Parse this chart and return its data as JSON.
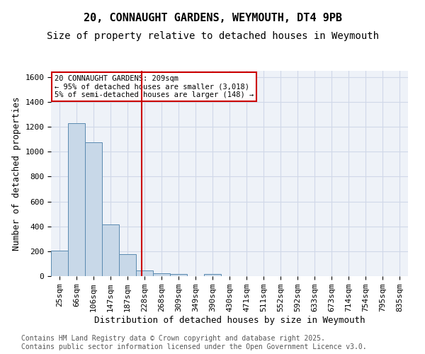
{
  "title1": "20, CONNAUGHT GARDENS, WEYMOUTH, DT4 9PB",
  "title2": "Size of property relative to detached houses in Weymouth",
  "xlabel": "Distribution of detached houses by size in Weymouth",
  "ylabel": "Number of detached properties",
  "bin_labels": [
    "25sqm",
    "66sqm",
    "106sqm",
    "147sqm",
    "187sqm",
    "228sqm",
    "268sqm",
    "309sqm",
    "349sqm",
    "390sqm",
    "430sqm",
    "471sqm",
    "511sqm",
    "552sqm",
    "592sqm",
    "633sqm",
    "673sqm",
    "714sqm",
    "754sqm",
    "795sqm",
    "835sqm"
  ],
  "bar_heights": [
    205,
    1230,
    1075,
    415,
    175,
    45,
    25,
    15,
    0,
    15,
    0,
    0,
    0,
    0,
    0,
    0,
    0,
    0,
    0,
    0,
    0
  ],
  "bar_color": "#c8d8e8",
  "bar_edge_color": "#5a8ab0",
  "ylim": [
    0,
    1650
  ],
  "yticks": [
    0,
    200,
    400,
    600,
    800,
    1000,
    1200,
    1400,
    1600
  ],
  "vline_x": 4.82,
  "vline_color": "#cc0000",
  "annotation_text": "20 CONNAUGHT GARDENS: 209sqm\n← 95% of detached houses are smaller (3,018)\n5% of semi-detached houses are larger (148) →",
  "annotation_box_color": "#cc0000",
  "annotation_bg": "#ffffff",
  "grid_color": "#d0d8e8",
  "bg_color": "#eef2f8",
  "footer_text": "Contains HM Land Registry data © Crown copyright and database right 2025.\nContains public sector information licensed under the Open Government Licence v3.0.",
  "title1_fontsize": 11,
  "title2_fontsize": 10,
  "xlabel_fontsize": 9,
  "ylabel_fontsize": 9,
  "tick_fontsize": 8,
  "footer_fontsize": 7
}
